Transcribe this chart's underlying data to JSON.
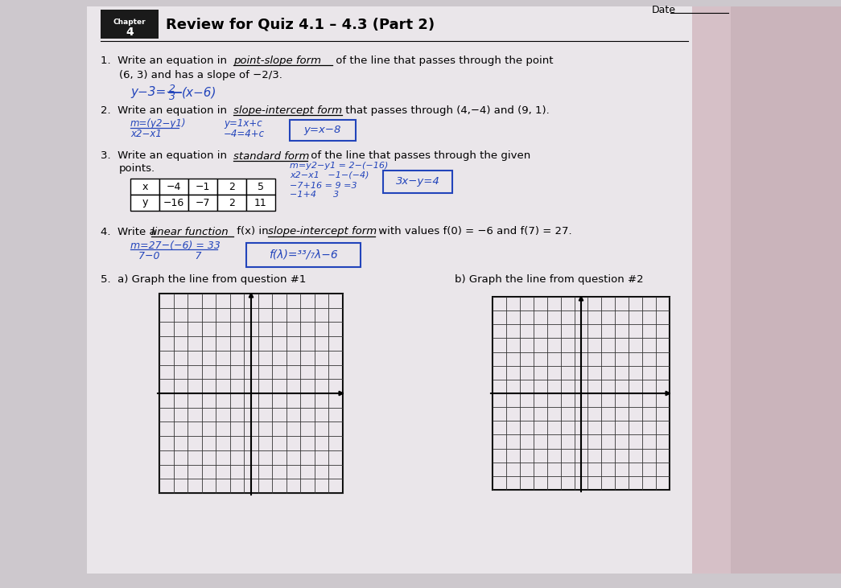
{
  "background_color": "#cdc8cd",
  "page_background": "#eae6ea",
  "title_box_color": "#1a1a1a",
  "title_text": "Review for Quiz 4.1 – 4.3 (Part 2)",
  "chapter_label": "Chapter\n4",
  "date_label": "Date",
  "q1_prefix": "1.  Write an equation in ",
  "q1_underline": "point-slope form",
  "q1_suffix": " of the line that passes through the point",
  "q1_line2": "(6, 3) and has a slope of −2/3.",
  "q2_prefix": "2.  Write an equation in ",
  "q2_underline": "slope-intercept form",
  "q2_suffix": " that passes through (4,−4) and (9, 1).",
  "q3_prefix": "3.  Write an equation in ",
  "q3_underline": "standard form",
  "q3_suffix": " of the line that passes through the given",
  "q3_line2": "points.",
  "q3_table_headers": [
    "x",
    "−4",
    "−1",
    "2",
    "5"
  ],
  "q3_table_row2": [
    "y",
    "−16",
    "−7",
    "2",
    "11"
  ],
  "q4_prefix": "4.  Write a ",
  "q4_underline1": "linear function",
  "q4_mid": " f(x) in ",
  "q4_underline2": "slope-intercept form",
  "q4_suffix": " with values f(0) = −6 and f(7) = 27.",
  "q5a_text": "5.  a) Graph the line from question #1",
  "q5b_text": "b) Graph the line from question #2",
  "grid_bg": "#ece7ec",
  "grid_line_color": "#333333",
  "handwriting_color": "#2244bb",
  "box_color": "#2244bb",
  "font_size_main": 9.5,
  "font_size_title": 14
}
